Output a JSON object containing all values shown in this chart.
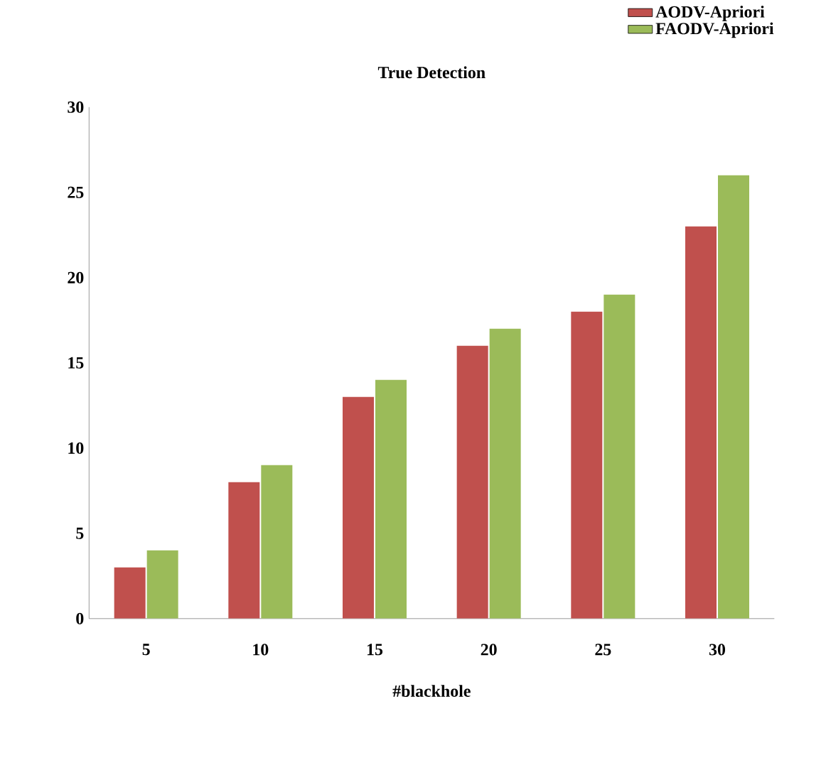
{
  "chart_data": {
    "type": "bar",
    "title": "True Detection",
    "xlabel": "#blackhole",
    "categories": [
      "5",
      "10",
      "15",
      "20",
      "25",
      "30"
    ],
    "series": [
      {
        "name": "AODV-Apriori",
        "color": "#c0504d",
        "values": [
          3,
          8,
          13,
          16,
          18,
          23
        ]
      },
      {
        "name": "FAODV-Apriori",
        "color": "#9bbb59",
        "values": [
          4,
          9,
          14,
          17,
          19,
          26
        ]
      }
    ],
    "ylim": [
      0,
      30
    ],
    "yticks": [
      0,
      5,
      10,
      15,
      20,
      25,
      30
    ],
    "grid": false,
    "legend": "top right"
  }
}
